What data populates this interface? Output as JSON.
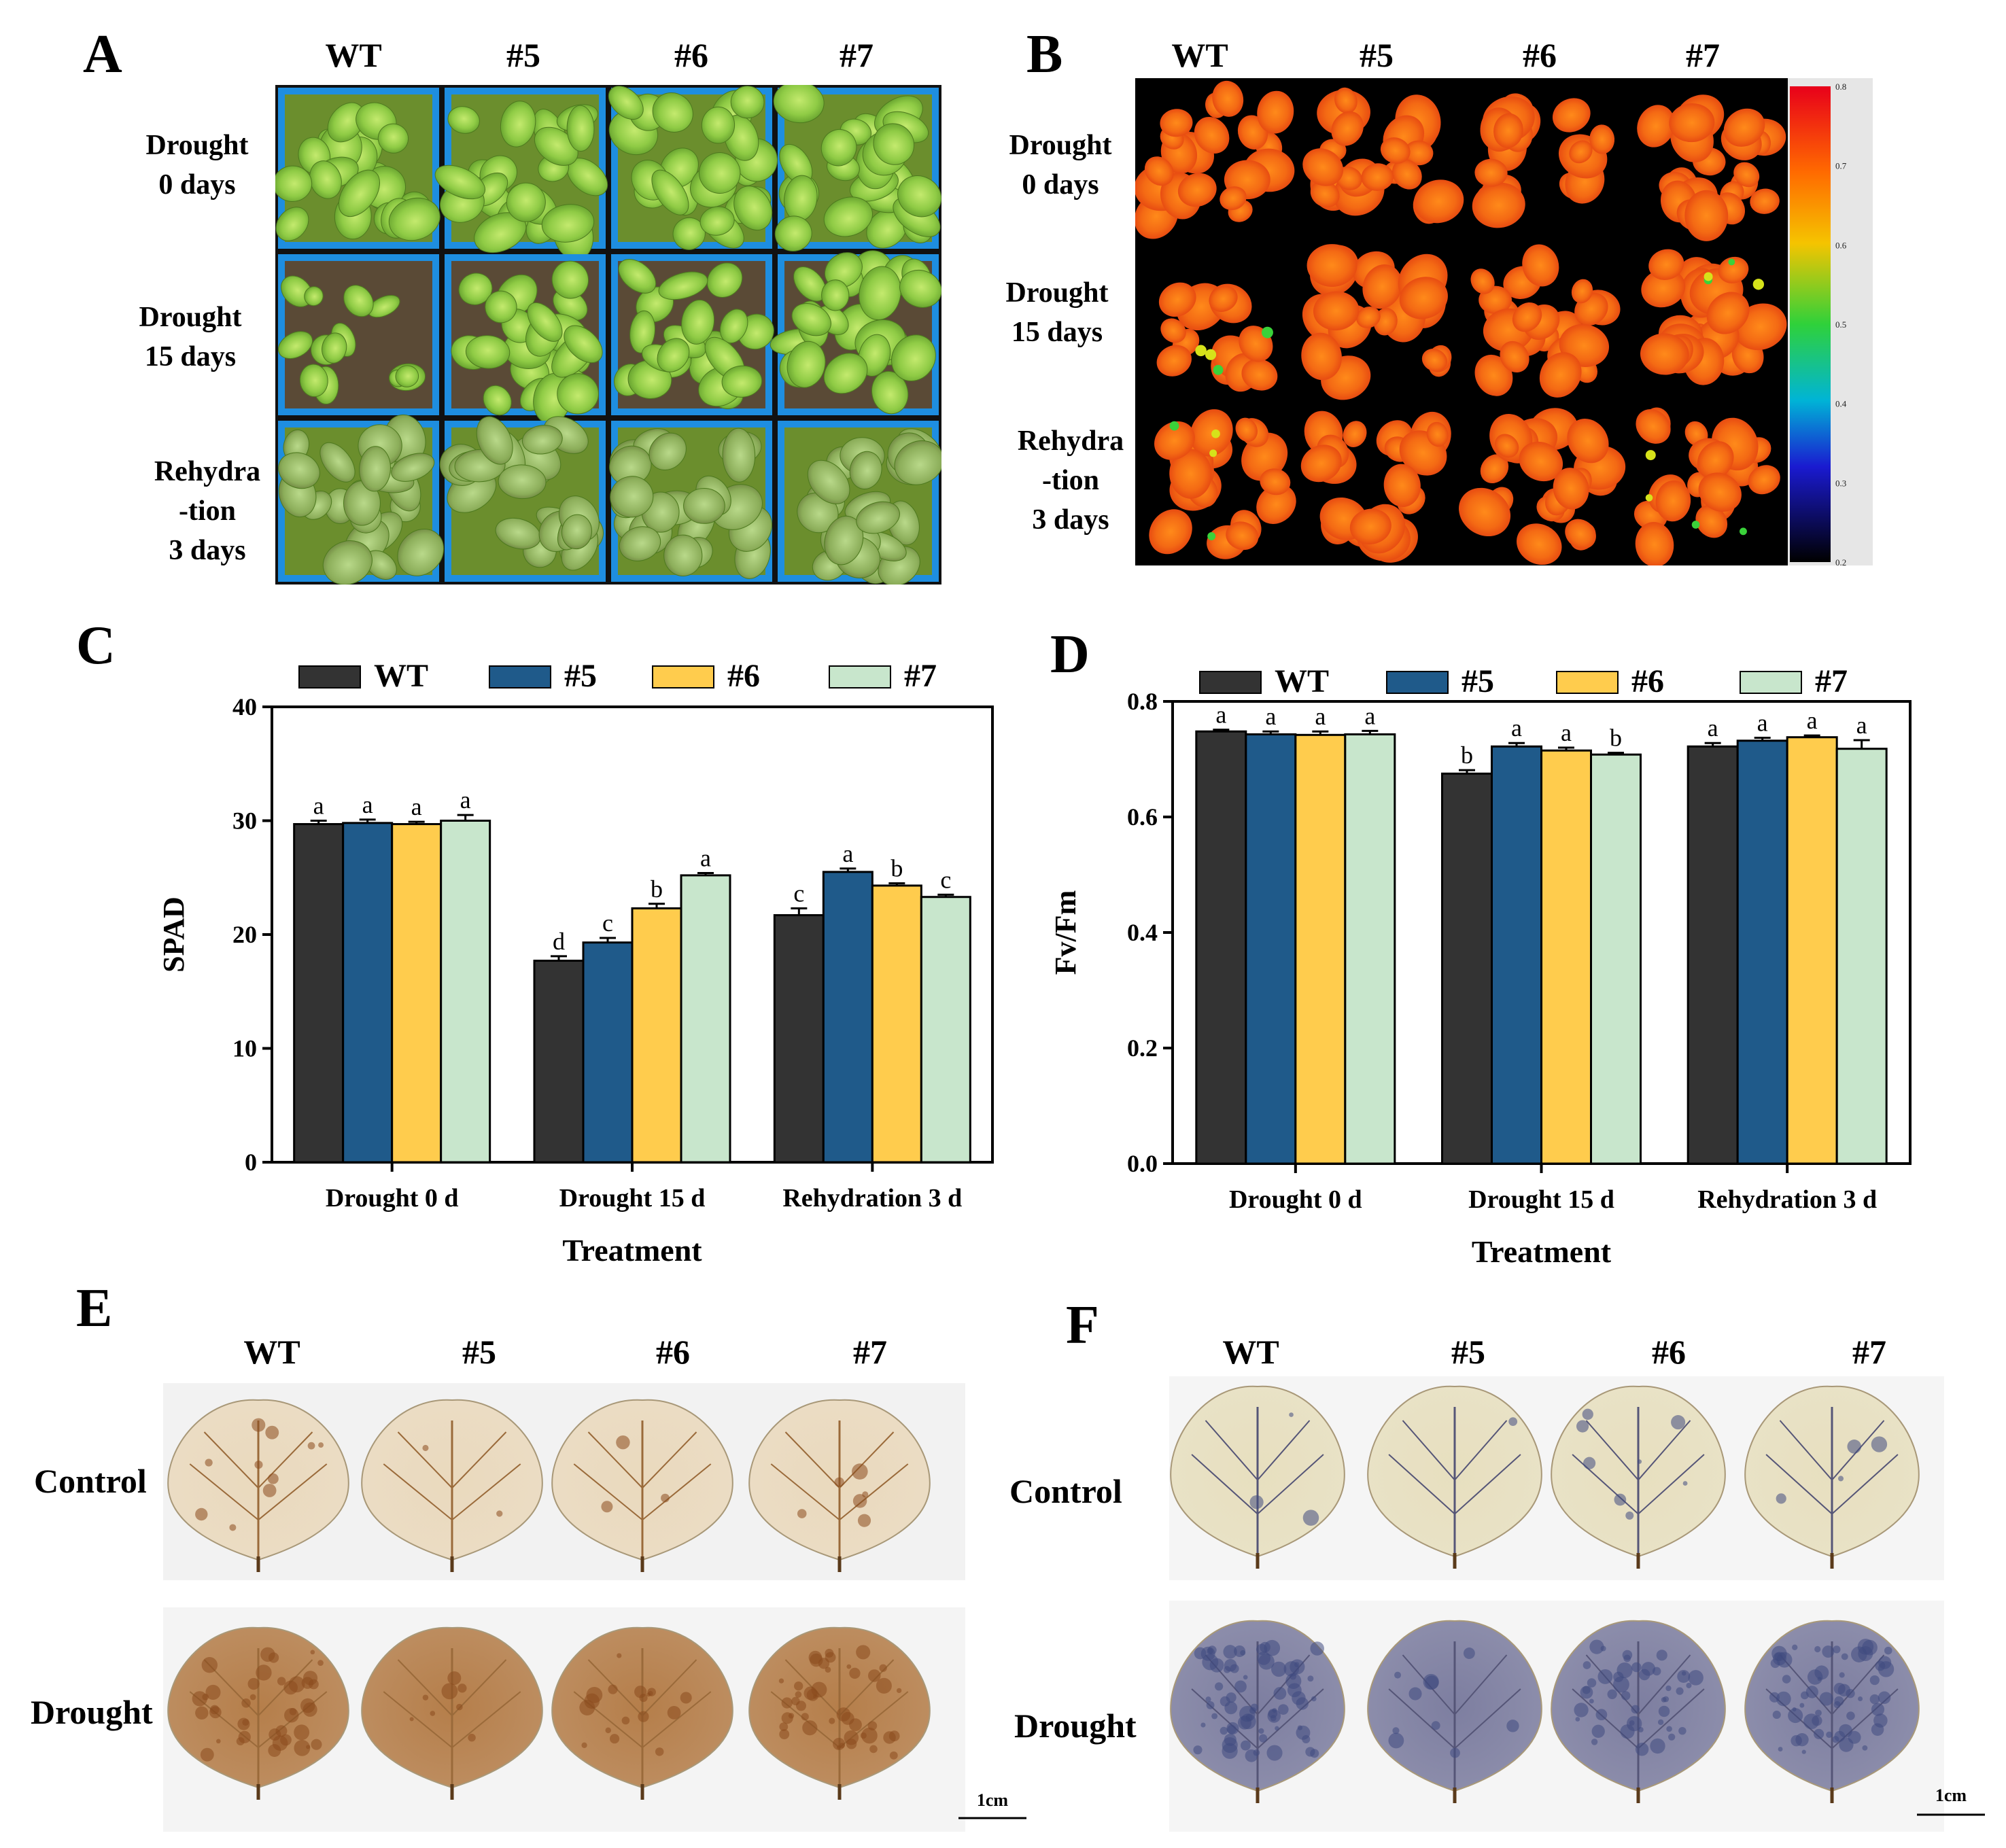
{
  "panels": {
    "a": "A",
    "b": "B",
    "c": "C",
    "d": "D",
    "e": "E",
    "f": "F"
  },
  "genotypes": [
    "WT",
    "#5",
    "#6",
    "#7"
  ],
  "rows_a": {
    "r1": [
      "Drought",
      "0 days"
    ],
    "r2": [
      "Drought",
      "15 days"
    ],
    "r3": [
      "Rehydra",
      "-tion",
      "3 days"
    ]
  },
  "colorbar_ticks": [
    "0.8",
    "0.7",
    "0.6",
    "0.5",
    "0.4",
    "0.3",
    "0.2"
  ],
  "rows_ef": {
    "control": "Control",
    "drought": "Drought"
  },
  "scalebar": "1cm",
  "colors": {
    "WT": "#333333",
    "#5": "#1f5a8a",
    "#6": "#ffcc4d",
    "#7": "#c8e6cc",
    "plant_green": "#7fc23a",
    "tray_blue": "#1e8ee0",
    "dab_light": "#ead9bd",
    "dab_dark": "#b57e4a",
    "nbt_light": "#e7dfbf",
    "nbt_dark": "#7d7ea0"
  },
  "chart_data": [
    {
      "type": "bar",
      "title": "C",
      "categories": [
        "Drought 0 d",
        "Drought 15 d",
        "Rehydration 3 d"
      ],
      "series": [
        {
          "name": "WT",
          "values": [
            29.7,
            17.7,
            21.7
          ],
          "errors": [
            0.3,
            0.4,
            0.6
          ],
          "letters": [
            "a",
            "d",
            "c"
          ]
        },
        {
          "name": "#5",
          "values": [
            29.8,
            19.3,
            25.5
          ],
          "errors": [
            0.3,
            0.4,
            0.3
          ],
          "letters": [
            "a",
            "c",
            "a"
          ]
        },
        {
          "name": "#6",
          "values": [
            29.7,
            22.3,
            24.3
          ],
          "errors": [
            0.2,
            0.4,
            0.2
          ],
          "letters": [
            "a",
            "b",
            "b"
          ]
        },
        {
          "name": "#7",
          "values": [
            30.0,
            25.2,
            23.3
          ],
          "errors": [
            0.5,
            0.2,
            0.2
          ],
          "letters": [
            "a",
            "a",
            "c"
          ]
        }
      ],
      "xlabel": "Treatment",
      "ylabel": "SPAD",
      "ylim": [
        0,
        40
      ],
      "yticks": [
        "0",
        "10",
        "20",
        "30",
        "40"
      ]
    },
    {
      "type": "bar",
      "title": "D",
      "categories": [
        "Drought 0 d",
        "Drought 15 d",
        "Rehydration 3 d"
      ],
      "series": [
        {
          "name": "WT",
          "values": [
            0.748,
            0.675,
            0.722
          ],
          "errors": [
            0.003,
            0.006,
            0.006
          ],
          "letters": [
            "a",
            "b",
            "a"
          ]
        },
        {
          "name": "#5",
          "values": [
            0.743,
            0.722,
            0.732
          ],
          "errors": [
            0.005,
            0.006,
            0.005
          ],
          "letters": [
            "a",
            "a",
            "a"
          ]
        },
        {
          "name": "#6",
          "values": [
            0.742,
            0.715,
            0.738
          ],
          "errors": [
            0.006,
            0.005,
            0.003
          ],
          "letters": [
            "a",
            "a",
            "a"
          ]
        },
        {
          "name": "#7",
          "values": [
            0.743,
            0.708,
            0.718
          ],
          "errors": [
            0.006,
            0.003,
            0.015
          ],
          "letters": [
            "a",
            "b",
            "a"
          ]
        }
      ],
      "xlabel": "Treatment",
      "ylabel": "Fv/Fm",
      "ylim": [
        0,
        0.8
      ],
      "yticks": [
        "0.0",
        "0.2",
        "0.4",
        "0.6",
        "0.8"
      ]
    }
  ]
}
